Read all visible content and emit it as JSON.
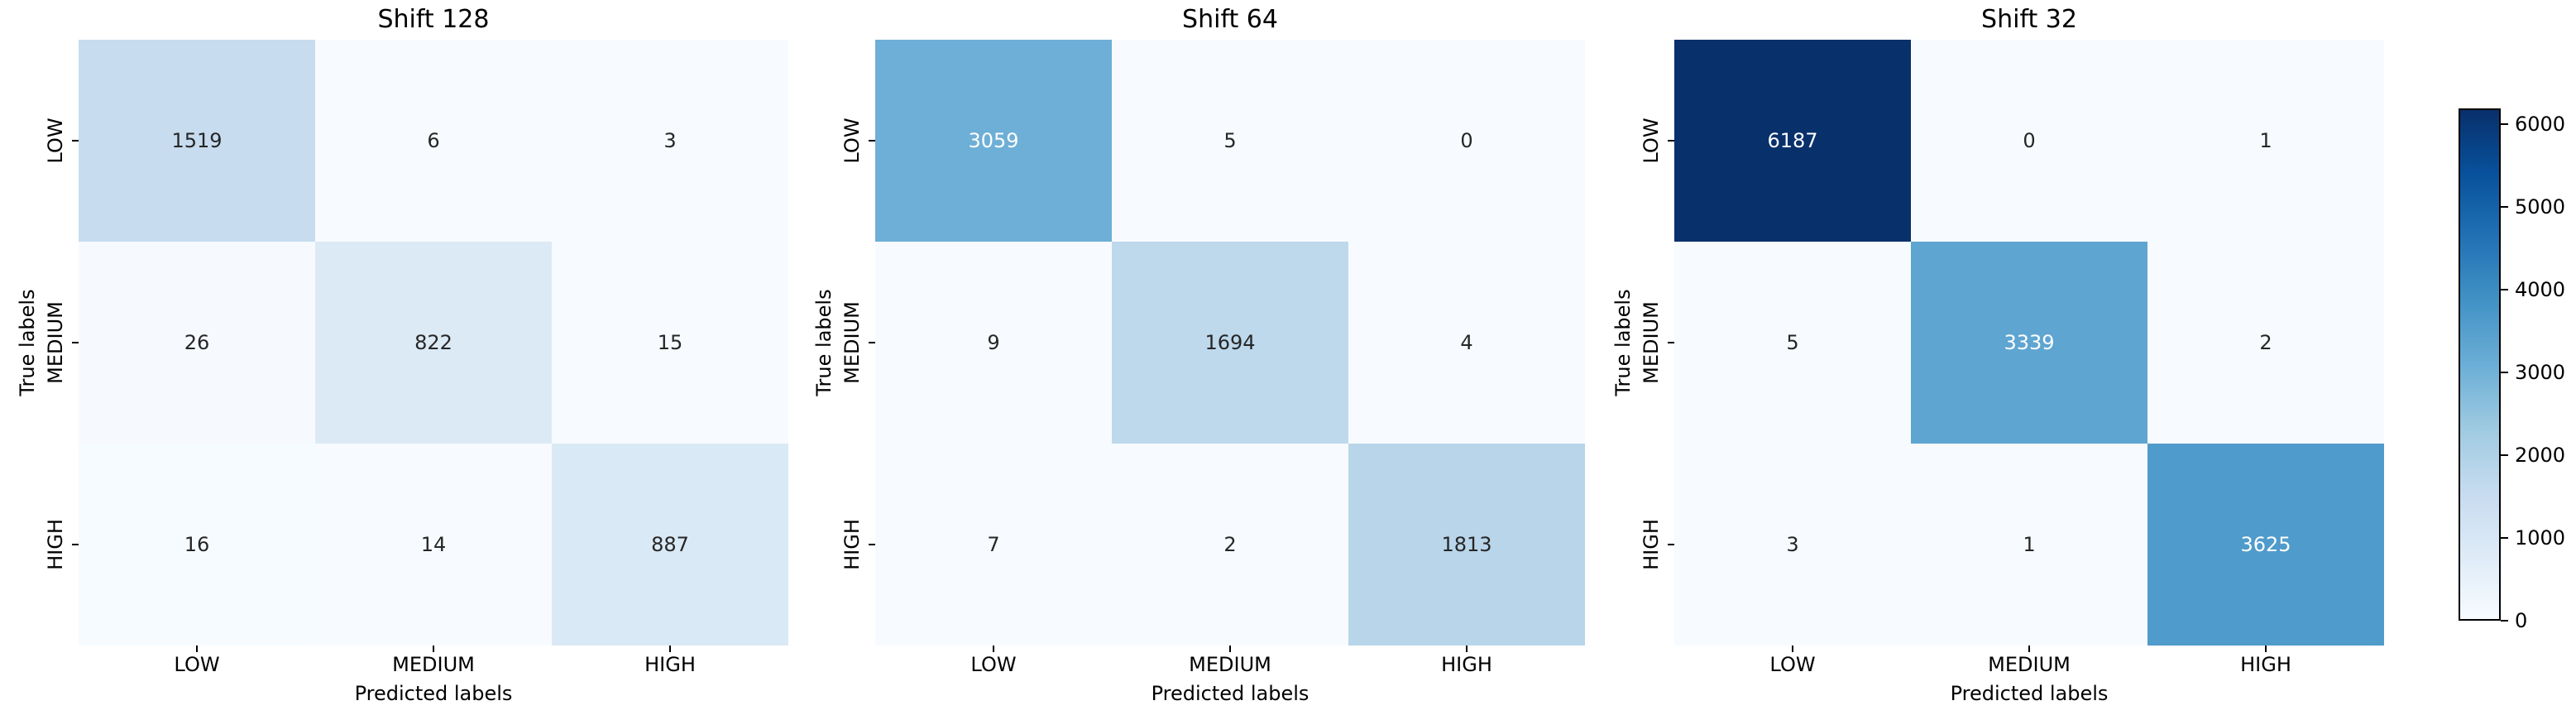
{
  "figure": {
    "background": "#ffffff",
    "annotation_dark_color": "#262626",
    "annotation_light_color": "#ffffff"
  },
  "chart_data": {
    "type": "heatmap",
    "layout_hint": "three confusion matrices side by side sharing one vertical colorbar on the right, colormap Blues, no gridlines",
    "panels": [
      {
        "title": "Shift 128",
        "xlabel": "Predicted labels",
        "ylabel": "True labels",
        "x_categories": [
          "LOW",
          "MEDIUM",
          "HIGH"
        ],
        "y_categories": [
          "LOW",
          "MEDIUM",
          "HIGH"
        ],
        "values": [
          [
            1519,
            6,
            3
          ],
          [
            26,
            822,
            15
          ],
          [
            16,
            14,
            887
          ]
        ]
      },
      {
        "title": "Shift 64",
        "xlabel": "Predicted labels",
        "ylabel": "True labels",
        "x_categories": [
          "LOW",
          "MEDIUM",
          "HIGH"
        ],
        "y_categories": [
          "LOW",
          "MEDIUM",
          "HIGH"
        ],
        "values": [
          [
            3059,
            5,
            0
          ],
          [
            9,
            1694,
            4
          ],
          [
            7,
            2,
            1813
          ]
        ]
      },
      {
        "title": "Shift 32",
        "xlabel": "Predicted labels",
        "ylabel": "True labels",
        "x_categories": [
          "LOW",
          "MEDIUM",
          "HIGH"
        ],
        "y_categories": [
          "LOW",
          "MEDIUM",
          "HIGH"
        ],
        "values": [
          [
            6187,
            0,
            1
          ],
          [
            5,
            3339,
            2
          ],
          [
            3,
            1,
            3625
          ]
        ]
      }
    ],
    "color_scale": {
      "colormap": "Blues",
      "vmin": 0,
      "vmax": 6187,
      "ticks": [
        0,
        1000,
        2000,
        3000,
        4000,
        5000,
        6000
      ],
      "max_color": "#08306b",
      "min_color": "#f7fbff"
    }
  }
}
